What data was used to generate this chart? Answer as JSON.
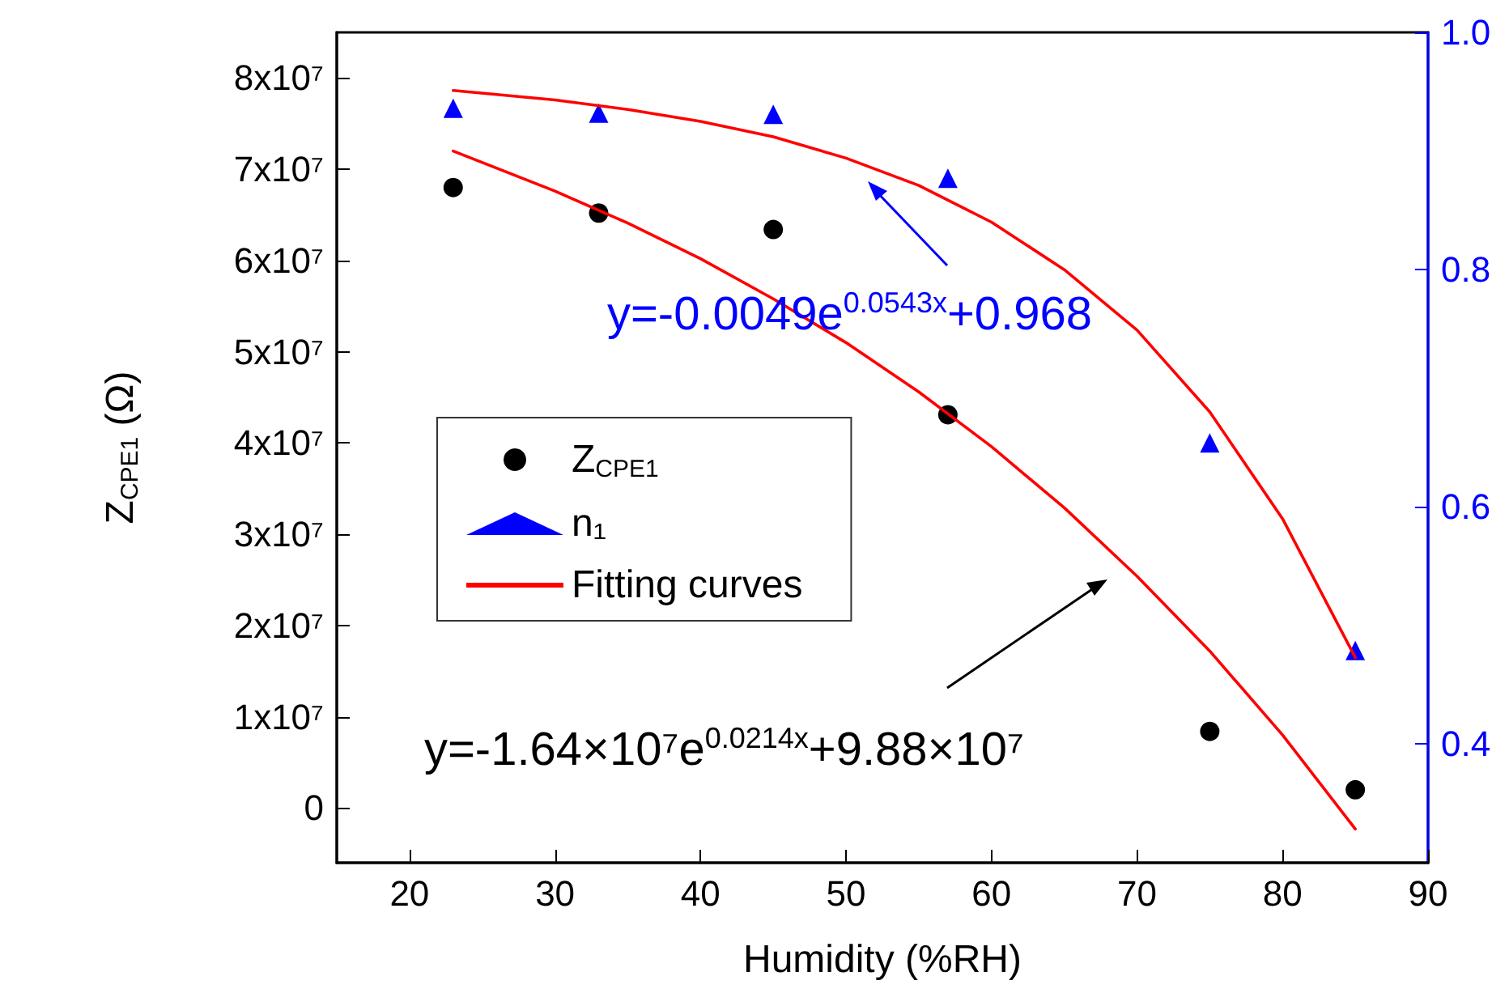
{
  "chart_data": {
    "type": "scatter",
    "xlabel": "Humidity (%RH)",
    "ylabel": "Z$_{CPE1}$ (Ω)",
    "xlim": [
      15,
      90
    ],
    "xticks": [
      20,
      30,
      40,
      50,
      60,
      70,
      80,
      90
    ],
    "ylim": [
      -6000000,
      85000000
    ],
    "yticks": [
      {
        "value": 0,
        "label": "0"
      },
      {
        "value": 10000000,
        "label": "1x10⁷"
      },
      {
        "value": 20000000,
        "label": "2x10⁷"
      },
      {
        "value": 30000000,
        "label": "3x10⁷"
      },
      {
        "value": 40000000,
        "label": "4x10⁷"
      },
      {
        "value": 50000000,
        "label": "5x10⁷"
      },
      {
        "value": 60000000,
        "label": "6x10⁷"
      },
      {
        "value": 70000000,
        "label": "7x10⁷"
      },
      {
        "value": 80000000,
        "label": "8x10⁷"
      }
    ],
    "y2lim": [
      0.3,
      1.0
    ],
    "y2ticks": [
      {
        "value": 1.0,
        "label": "1.0"
      },
      0.8,
      0.6,
      0.4
    ],
    "legend": "left",
    "grid": false,
    "series": [
      {
        "name": "Z$_{CPE1}$",
        "marker": "circle",
        "color": "#000000",
        "x": [
          23,
          33,
          45,
          57,
          75,
          85
        ],
        "values": [
          68000000,
          65200000,
          63400000,
          43100000,
          8400000,
          2000000
        ]
      },
      {
        "name": "n₁",
        "marker": "triangle",
        "color": "#0000ff",
        "axis": "y2",
        "x": [
          23,
          33,
          45,
          57,
          75,
          85
        ],
        "values": [
          0.936,
          0.932,
          0.931,
          0.877,
          0.654,
          0.479
        ]
      },
      {
        "name": "Fitting curves",
        "type": "line",
        "marker": "none",
        "line_style": "solid",
        "color": "#ff0000",
        "x": [
          23,
          30,
          35,
          40,
          45,
          50,
          55,
          60,
          65,
          70,
          75,
          80,
          85
        ],
        "values": [
          72000000,
          67600000,
          64100000,
          60200000,
          55800000,
          51000000,
          45600000,
          39600000,
          32900000,
          25400000,
          17200000,
          8000000,
          -2300000
        ]
      },
      {
        "type": "line",
        "marker": "none",
        "line_style": "solid",
        "color": "#ff0000",
        "axis": "y2",
        "x": [
          23,
          30,
          35,
          40,
          45,
          50,
          55,
          60,
          65,
          70,
          75,
          80,
          85
        ],
        "values": [
          0.951,
          0.943,
          0.935,
          0.925,
          0.912,
          0.894,
          0.871,
          0.84,
          0.8,
          0.749,
          0.68,
          0.59,
          0.473
        ]
      }
    ],
    "annotations": [
      "y=-0.0049e$^{0.0543x}$+0.968",
      "y=-1.64×10⁷e$^{0.0214x}$+9.88×10⁷"
    ]
  }
}
